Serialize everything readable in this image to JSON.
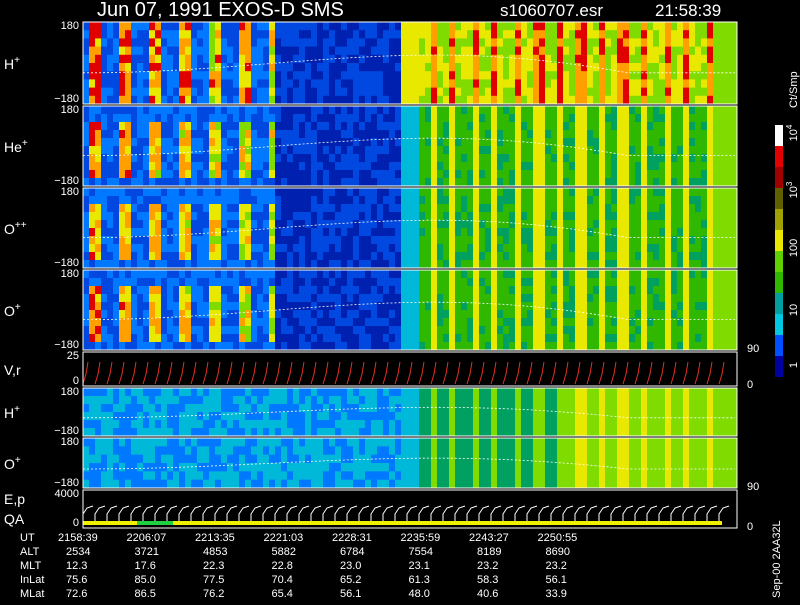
{
  "header": {
    "title": "Jun 07, 1991   EXOS-D SMS",
    "file": "s1060707.esr",
    "time": "21:58:39"
  },
  "panels": [
    {
      "name": "H",
      "charge": "+",
      "top": "180",
      "bottom": "−180"
    },
    {
      "name": "He",
      "charge": "+",
      "top": "180",
      "bottom": "−180"
    },
    {
      "name": "O",
      "charge": "++",
      "top": "180",
      "bottom": "−180"
    },
    {
      "name": "O",
      "charge": "+",
      "top": "180",
      "bottom": "−180",
      "right": "90"
    },
    {
      "name": "V,r",
      "top": "25",
      "bottom": "0",
      "right": "0"
    },
    {
      "name": "H",
      "charge": "+",
      "top": "180",
      "bottom": "−180"
    },
    {
      "name": "O",
      "charge": "+",
      "top": "180",
      "bottom": "−180",
      "right": "90"
    },
    {
      "name": "E,p",
      "name2": "QA",
      "top": "4000",
      "bottom": "0",
      "right": "0"
    }
  ],
  "colorbar": {
    "unit": "Ct/Smp",
    "labels": [
      {
        "base": "10",
        "exp": "4"
      },
      {
        "base": "10",
        "exp": "3"
      },
      {
        "base": "100"
      },
      {
        "base": "10"
      },
      {
        "base": "1"
      }
    ]
  },
  "table": {
    "labels": [
      "UT",
      "ALT",
      "MLT",
      "InLat",
      "MLat"
    ],
    "rows": [
      [
        "2158:39",
        "2206:07",
        "2213:35",
        "2221:03",
        "2228:31",
        "2235:59",
        "2243:27",
        "2250:55"
      ],
      [
        "2534",
        "3721",
        "4853",
        "5882",
        "6784",
        "7554",
        "8189",
        "8690"
      ],
      [
        "12.3",
        "17.6",
        "22.3",
        "22.8",
        "23.0",
        "23.1",
        "23.2",
        "23.2"
      ],
      [
        "75.6",
        "85.0",
        "77.5",
        "70.4",
        "65.2",
        "61.3",
        "58.3",
        "56.1"
      ],
      [
        "72.6",
        "86.5",
        "76.2",
        "65.4",
        "56.1",
        "48.0",
        "40.6",
        "33.9"
      ]
    ]
  },
  "footer": "Sep-00 2AA32L"
}
